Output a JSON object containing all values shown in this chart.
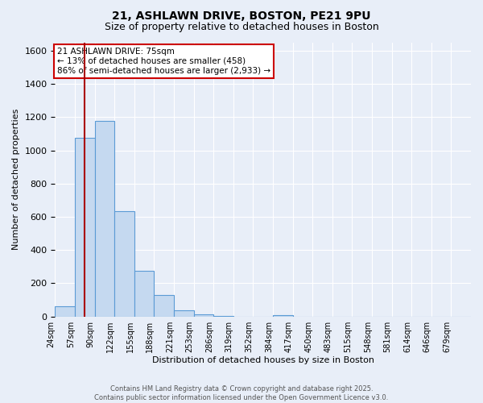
{
  "title_line1": "21, ASHLAWN DRIVE, BOSTON, PE21 9PU",
  "title_line2": "Size of property relative to detached houses in Boston",
  "xlabel": "Distribution of detached houses by size in Boston",
  "ylabel": "Number of detached properties",
  "bin_labels": [
    "24sqm",
    "57sqm",
    "90sqm",
    "122sqm",
    "155sqm",
    "188sqm",
    "221sqm",
    "253sqm",
    "286sqm",
    "319sqm",
    "352sqm",
    "384sqm",
    "417sqm",
    "450sqm",
    "483sqm",
    "515sqm",
    "548sqm",
    "581sqm",
    "614sqm",
    "646sqm",
    "679sqm"
  ],
  "bar_heights": [
    60,
    1075,
    1175,
    635,
    275,
    130,
    35,
    15,
    5,
    0,
    0,
    10,
    0,
    0,
    0,
    0,
    0,
    0,
    0,
    0,
    0
  ],
  "bar_color": "#c5d9f0",
  "bar_edge_color": "#5b9bd5",
  "vline_position": 1.5,
  "vline_color": "#aa0000",
  "annotation_text": "21 ASHLAWN DRIVE: 75sqm\n← 13% of detached houses are smaller (458)\n86% of semi-detached houses are larger (2,933) →",
  "annotation_box_color": "#ffffff",
  "annotation_box_edge": "#cc0000",
  "ylim": [
    0,
    1650
  ],
  "yticks": [
    0,
    200,
    400,
    600,
    800,
    1000,
    1200,
    1400,
    1600
  ],
  "background_color": "#e8eef8",
  "grid_color": "#ffffff",
  "footer_line1": "Contains HM Land Registry data © Crown copyright and database right 2025.",
  "footer_line2": "Contains public sector information licensed under the Open Government Licence v3.0."
}
